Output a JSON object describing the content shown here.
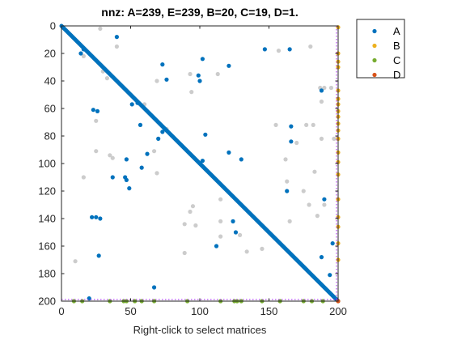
{
  "chart_data": {
    "type": "scatter",
    "title": "nnz: A=239, E=239, B=20, C=19, D=1.",
    "xlabel": "Right-click to select matrices",
    "ylabel": "",
    "xlim": [
      0,
      200
    ],
    "ylim": [
      200,
      0
    ],
    "y_reversed": true,
    "xticks": [
      0,
      50,
      100,
      150,
      200
    ],
    "yticks": [
      0,
      20,
      40,
      60,
      80,
      100,
      120,
      140,
      160,
      180,
      200
    ],
    "grid": false,
    "legend_position": "top-right",
    "series": [
      {
        "name": "E",
        "color": "#cccccc",
        "diagonal": true,
        "points": [
          [
            28,
            2
          ],
          [
            40,
            15
          ],
          [
            16,
            22
          ],
          [
            30,
            33
          ],
          [
            33,
            38
          ],
          [
            93,
            35
          ],
          [
            113,
            35
          ],
          [
            157,
            18
          ],
          [
            180,
            15
          ],
          [
            187,
            45
          ],
          [
            190,
            45
          ],
          [
            195,
            45
          ],
          [
            188,
            55
          ],
          [
            69,
            40
          ],
          [
            94,
            48
          ],
          [
            177,
            72
          ],
          [
            182,
            72
          ],
          [
            188,
            82
          ],
          [
            197,
            82
          ],
          [
            155,
            72
          ],
          [
            170,
            85
          ],
          [
            162,
            97
          ],
          [
            60,
            57
          ],
          [
            76,
            75
          ],
          [
            25,
            69
          ],
          [
            35,
            94
          ],
          [
            37,
            96
          ],
          [
            25,
            91
          ],
          [
            16,
            110
          ],
          [
            67,
            91
          ],
          [
            69,
            107
          ],
          [
            95,
            131
          ],
          [
            93,
            135
          ],
          [
            89,
            144
          ],
          [
            97,
            145
          ],
          [
            163,
            113
          ],
          [
            115,
            142
          ],
          [
            179,
            130
          ],
          [
            190,
            130
          ],
          [
            185,
            138
          ],
          [
            165,
            142
          ],
          [
            145,
            162
          ],
          [
            115,
            153
          ],
          [
            129,
            152
          ],
          [
            134,
            164
          ],
          [
            89,
            165
          ],
          [
            10,
            171
          ],
          [
            115,
            126
          ],
          [
            175,
            120
          ],
          [
            183,
            106
          ],
          [
            158,
            158
          ],
          [
            162,
            162
          ]
        ]
      },
      {
        "name": "A",
        "color": "#0072bd",
        "diagonal": true,
        "points": [
          [
            14,
            20
          ],
          [
            16,
            17
          ],
          [
            40,
            8
          ],
          [
            73,
            28
          ],
          [
            76,
            39
          ],
          [
            100,
            40
          ],
          [
            121,
            29
          ],
          [
            147,
            17
          ],
          [
            165,
            17
          ],
          [
            188,
            47
          ],
          [
            166,
            73
          ],
          [
            166,
            84
          ],
          [
            55,
            56
          ],
          [
            51,
            57
          ],
          [
            57,
            72
          ],
          [
            23,
            61
          ],
          [
            26,
            62
          ],
          [
            62,
            93
          ],
          [
            70,
            82
          ],
          [
            73,
            77
          ],
          [
            104,
            79
          ],
          [
            121,
            92
          ],
          [
            102,
            98
          ],
          [
            130,
            97
          ],
          [
            37,
            110
          ],
          [
            46,
            110
          ],
          [
            47,
            112
          ],
          [
            49,
            118
          ],
          [
            58,
            103
          ],
          [
            47,
            97
          ],
          [
            163,
            120
          ],
          [
            190,
            126
          ],
          [
            196,
            158
          ],
          [
            188,
            168
          ],
          [
            194,
            181
          ],
          [
            25,
            139
          ],
          [
            28,
            140
          ],
          [
            22,
            139
          ],
          [
            27,
            167
          ],
          [
            112,
            160
          ],
          [
            124,
            142
          ],
          [
            126,
            150
          ],
          [
            20,
            198
          ],
          [
            67,
            190
          ],
          [
            102,
            24
          ],
          [
            99,
            36
          ]
        ]
      },
      {
        "name": "B",
        "color": "#edb120",
        "x": 200,
        "y": [
          1,
          20,
          26,
          30,
          47,
          53,
          57,
          62,
          66,
          71,
          76,
          82,
          92,
          99,
          108,
          126,
          139,
          146,
          158,
          170
        ]
      },
      {
        "name": "C",
        "color": "#77ac30",
        "y": 200,
        "x": [
          9,
          15,
          35,
          45,
          47,
          53,
          58,
          67,
          91,
          115,
          125,
          127,
          130,
          145,
          158,
          175,
          181,
          189,
          200
        ]
      },
      {
        "name": "D",
        "color": "#d95319",
        "points": [
          [
            200,
            200
          ]
        ]
      }
    ]
  }
}
